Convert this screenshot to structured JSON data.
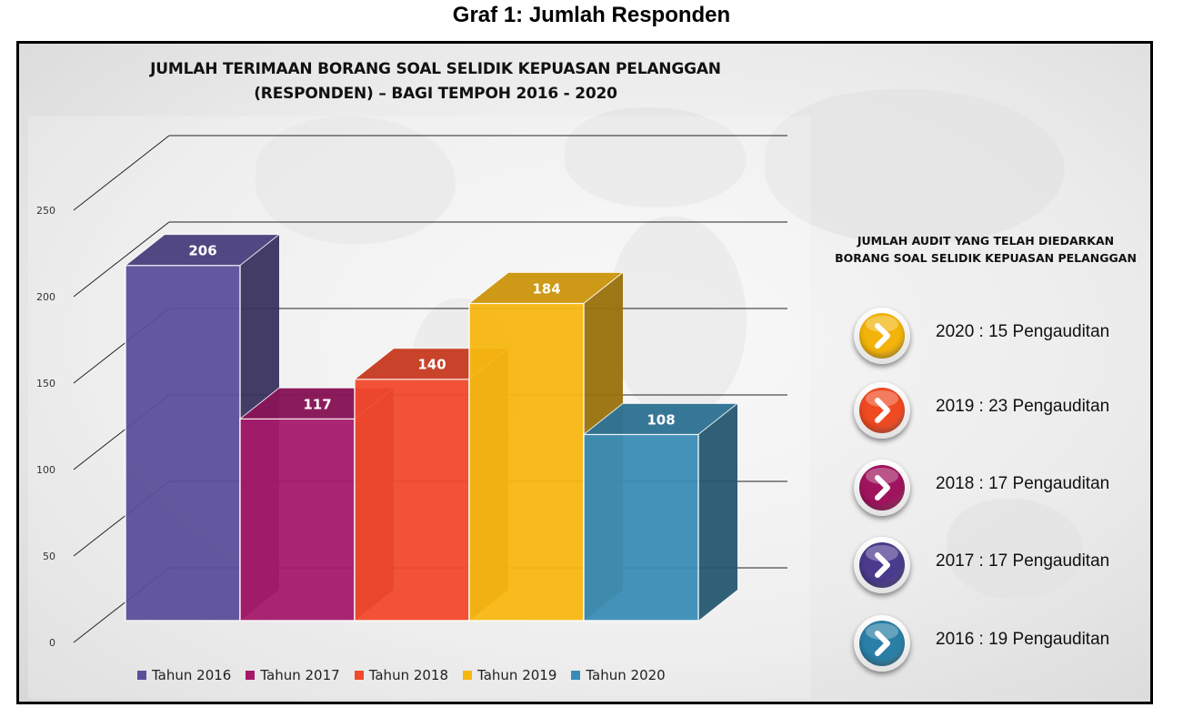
{
  "page_title": "Graf 1: Jumlah Responden",
  "chart_data": {
    "type": "bar",
    "title_lines": [
      "JUMLAH TERIMAAN BORANG SOAL SELIDIK KEPUASAN PELANGGAN",
      "(RESPONDEN) – BAGI TEMPOH 2016 - 2020"
    ],
    "categories": [
      "Tahun 2016",
      "Tahun 2017",
      "Tahun 2018",
      "Tahun 2019",
      "Tahun 2020"
    ],
    "values": [
      206,
      117,
      140,
      184,
      108
    ],
    "data_labels": [
      "206",
      "117",
      "140",
      "184",
      "108"
    ],
    "colors": [
      "#5b4f9a",
      "#a5196a",
      "#f14a2b",
      "#f7b711",
      "#3a8cb5"
    ],
    "ylim": [
      0,
      250
    ],
    "yticks": [
      0,
      50,
      100,
      150,
      200,
      250
    ],
    "ytick_labels": [
      "0",
      "50",
      "100",
      "150",
      "200",
      "250"
    ],
    "grid": true,
    "legend_position": "bottom",
    "style": "3d-column"
  },
  "audit_panel": {
    "title_line1": "JUMLAH AUDIT YANG TELAH DIEDARKAN",
    "title_line2": "BORANG SOAL SELIDIK KEPUASAN PELANGGAN",
    "items": [
      {
        "text": "2020 : 15 Pengauditan",
        "color": "#f2b30a",
        "icon": "chevron-right-icon"
      },
      {
        "text": "2019 : 23 Pengauditan",
        "color": "#ef4a22",
        "icon": "chevron-right-icon"
      },
      {
        "text": "2018 : 17 Pengauditan",
        "color": "#a0145e",
        "icon": "chevron-right-icon"
      },
      {
        "text": "2017 : 17 Pengauditan",
        "color": "#4a3b8c",
        "icon": "chevron-right-icon"
      },
      {
        "text": "2016 : 19 Pengauditan",
        "color": "#2a7fa6",
        "icon": "chevron-right-icon"
      }
    ]
  }
}
